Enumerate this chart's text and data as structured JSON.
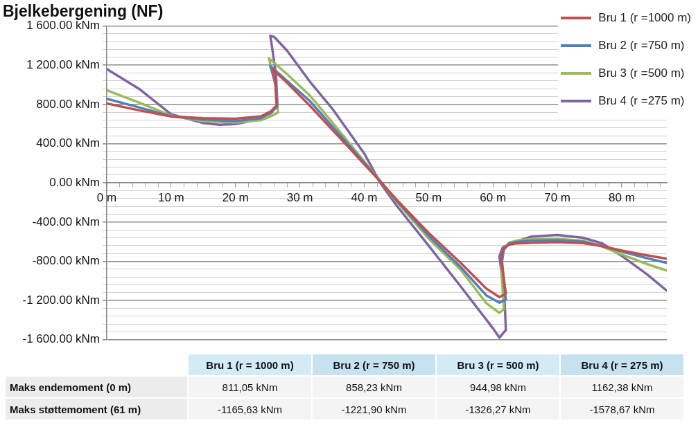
{
  "chart_data": [
    {
      "type": "line",
      "title": "Bjelkebergening (NF)",
      "xlim": [
        0,
        87
      ],
      "xticks": [
        {
          "value": 0,
          "label": "0 m"
        },
        {
          "value": 2,
          "label": null
        },
        {
          "value": 4,
          "label": null
        },
        {
          "value": 6,
          "label": null
        },
        {
          "value": 8,
          "label": null
        },
        {
          "value": 10,
          "label": "10 m"
        },
        {
          "value": 12,
          "label": null
        },
        {
          "value": 14,
          "label": null
        },
        {
          "value": 16,
          "label": null
        },
        {
          "value": 18,
          "label": null
        },
        {
          "value": 20,
          "label": "20 m"
        },
        {
          "value": 22,
          "label": null
        },
        {
          "value": 24,
          "label": null
        },
        {
          "value": 26,
          "label": null
        },
        {
          "value": 28,
          "label": null
        },
        {
          "value": 30,
          "label": "30 m"
        },
        {
          "value": 32,
          "label": null
        },
        {
          "value": 34,
          "label": null
        },
        {
          "value": 36,
          "label": null
        },
        {
          "value": 38,
          "label": null
        },
        {
          "value": 40,
          "label": "40 m"
        },
        {
          "value": 42,
          "label": null
        },
        {
          "value": 44,
          "label": null
        },
        {
          "value": 46,
          "label": null
        },
        {
          "value": 48,
          "label": null
        },
        {
          "value": 50,
          "label": "50 m"
        },
        {
          "value": 52,
          "label": null
        },
        {
          "value": 54,
          "label": null
        },
        {
          "value": 56,
          "label": null
        },
        {
          "value": 58,
          "label": null
        },
        {
          "value": 60,
          "label": "60 m"
        },
        {
          "value": 62,
          "label": null
        },
        {
          "value": 64,
          "label": null
        },
        {
          "value": 66,
          "label": null
        },
        {
          "value": 68,
          "label": null
        },
        {
          "value": 70,
          "label": "70 m"
        },
        {
          "value": 72,
          "label": null
        },
        {
          "value": 74,
          "label": null
        },
        {
          "value": 76,
          "label": null
        },
        {
          "value": 78,
          "label": null
        },
        {
          "value": 80,
          "label": "80 m"
        },
        {
          "value": 82,
          "label": null
        },
        {
          "value": 84,
          "label": null
        },
        {
          "value": 86,
          "label": null
        }
      ],
      "ylim": [
        -1600,
        1600
      ],
      "yticks": [
        {
          "value": -1600,
          "label": "-1 600.00 kNm"
        },
        {
          "value": -1520,
          "label": null
        },
        {
          "value": -1440,
          "label": null
        },
        {
          "value": -1360,
          "label": null
        },
        {
          "value": -1280,
          "label": null
        },
        {
          "value": -1200,
          "label": "-1 200.00 kNm"
        },
        {
          "value": -1120,
          "label": null
        },
        {
          "value": -1040,
          "label": null
        },
        {
          "value": -960,
          "label": null
        },
        {
          "value": -880,
          "label": null
        },
        {
          "value": -800,
          "label": "-800.00 kNm"
        },
        {
          "value": -720,
          "label": null
        },
        {
          "value": -640,
          "label": null
        },
        {
          "value": -560,
          "label": null
        },
        {
          "value": -480,
          "label": null
        },
        {
          "value": -400,
          "label": "-400.00 kNm"
        },
        {
          "value": -320,
          "label": null
        },
        {
          "value": -240,
          "label": null
        },
        {
          "value": -160,
          "label": null
        },
        {
          "value": -80,
          "label": null
        },
        {
          "value": 0,
          "label": "0.00 kNm"
        },
        {
          "value": 80,
          "label": null
        },
        {
          "value": 160,
          "label": null
        },
        {
          "value": 240,
          "label": null
        },
        {
          "value": 320,
          "label": null
        },
        {
          "value": 400,
          "label": "400.00 kNm"
        },
        {
          "value": 480,
          "label": null
        },
        {
          "value": 560,
          "label": null
        },
        {
          "value": 640,
          "label": null
        },
        {
          "value": 720,
          "label": null
        },
        {
          "value": 800,
          "label": "800.00 kNm"
        },
        {
          "value": 880,
          "label": null
        },
        {
          "value": 960,
          "label": null
        },
        {
          "value": 1040,
          "label": null
        },
        {
          "value": 1120,
          "label": null
        },
        {
          "value": 1200,
          "label": "1 200.00 kNm"
        },
        {
          "value": 1280,
          "label": null
        },
        {
          "value": 1360,
          "label": null
        },
        {
          "value": 1440,
          "label": null
        },
        {
          "value": 1520,
          "label": null
        },
        {
          "value": 1600,
          "label": "1 600.00 kNm"
        }
      ],
      "grid": "y",
      "legend": "top right",
      "marker": "none",
      "line_style": "solid",
      "series": [
        {
          "name": "Bru 1 (r =1000 m)",
          "color": "#c0504d",
          "x": [
            0,
            5,
            10,
            15,
            20,
            24,
            25.5,
            26.4,
            26.2,
            25.8,
            28,
            31.5,
            35,
            40,
            42.7,
            45,
            50,
            55,
            59,
            61,
            62,
            61.3,
            61.5,
            62.5,
            63.5,
            66,
            70,
            74,
            77,
            80,
            84,
            87
          ],
          "values": [
            810,
            740,
            678,
            660,
            655,
            680,
            730,
            790,
            1000,
            1157,
            1022,
            790,
            545,
            190,
            0,
            -170,
            -511,
            -817,
            -1080,
            -1166,
            -1130,
            -795,
            -680,
            -630,
            -618,
            -612,
            -604,
            -615,
            -646,
            -690,
            -740,
            -774
          ]
        },
        {
          "name": "Bru 2 (r =750 m)",
          "color": "#4f81bd",
          "x": [
            0,
            5,
            10,
            15,
            20,
            24,
            25.5,
            26.5,
            26.3,
            25.4,
            28,
            31.5,
            35,
            40,
            42.7,
            45,
            50,
            55,
            59,
            61,
            62,
            61.4,
            61.7,
            62.5,
            64,
            66,
            70,
            74,
            77,
            80,
            84,
            87
          ],
          "values": [
            858,
            770,
            680,
            645,
            630,
            660,
            720,
            780,
            1000,
            1193,
            1040,
            838,
            580,
            205,
            0,
            -180,
            -540,
            -860,
            -1150,
            -1222,
            -1190,
            -800,
            -680,
            -615,
            -600,
            -590,
            -585,
            -600,
            -645,
            -700,
            -770,
            -817
          ]
        },
        {
          "name": "Bru 3 (r =500 m)",
          "color": "#9bbb59",
          "x": [
            0,
            5,
            10,
            15,
            20,
            24,
            25.5,
            26.6,
            26.2,
            25.2,
            28,
            31.5,
            35,
            40,
            42.7,
            45,
            50,
            55,
            59,
            61,
            61.7,
            61.3,
            61.5,
            62.5,
            64,
            66,
            70,
            74,
            77,
            80,
            84,
            87
          ],
          "values": [
            945,
            820,
            685,
            630,
            615,
            640,
            680,
            717,
            1000,
            1271,
            1110,
            895,
            620,
            220,
            0,
            -190,
            -568,
            -888,
            -1230,
            -1326,
            -1290,
            -900,
            -700,
            -610,
            -585,
            -575,
            -570,
            -590,
            -650,
            -730,
            -830,
            -895
          ]
        },
        {
          "name": "Bru 4 (r =275 m)",
          "color": "#8064a2",
          "x": [
            0,
            5,
            10,
            15,
            17.5,
            20,
            23,
            25.5,
            26.5,
            26.3,
            25.6,
            25.4,
            26,
            28,
            31.5,
            35,
            40,
            42.5,
            45,
            50,
            55,
            60,
            61,
            62,
            61.8,
            61.3,
            61,
            61.5,
            63,
            66,
            70,
            74,
            77,
            80,
            84,
            87
          ],
          "values": [
            1162,
            960,
            700,
            610,
            592,
            600,
            640,
            710,
            790,
            1100,
            1420,
            1500,
            1490,
            1350,
            1037,
            760,
            300,
            0,
            -230,
            -640,
            -1058,
            -1484,
            -1579,
            -1500,
            -1200,
            -900,
            -750,
            -660,
            -610,
            -547,
            -532,
            -560,
            -618,
            -745,
            -937,
            -1100
          ]
        }
      ]
    },
    {
      "type": "other",
      "annotations": [
        "Bru 1 (r = 1000 m)",
        "Bru 2 (r = 750 m)",
        "Bru 3 (r = 500 m)",
        "Bru 4 (r = 275 m)",
        "Maks endemoment (0 m)",
        "811,05 kNm",
        "858,23 kNm",
        "944,98 kNm",
        "1162,38 kNm",
        "Maks støttemoment (61 m)",
        "-1165,63 kNm",
        "-1221,90 kNm",
        "-1326,27 kNm",
        "-1578,67 kNm"
      ]
    }
  ]
}
